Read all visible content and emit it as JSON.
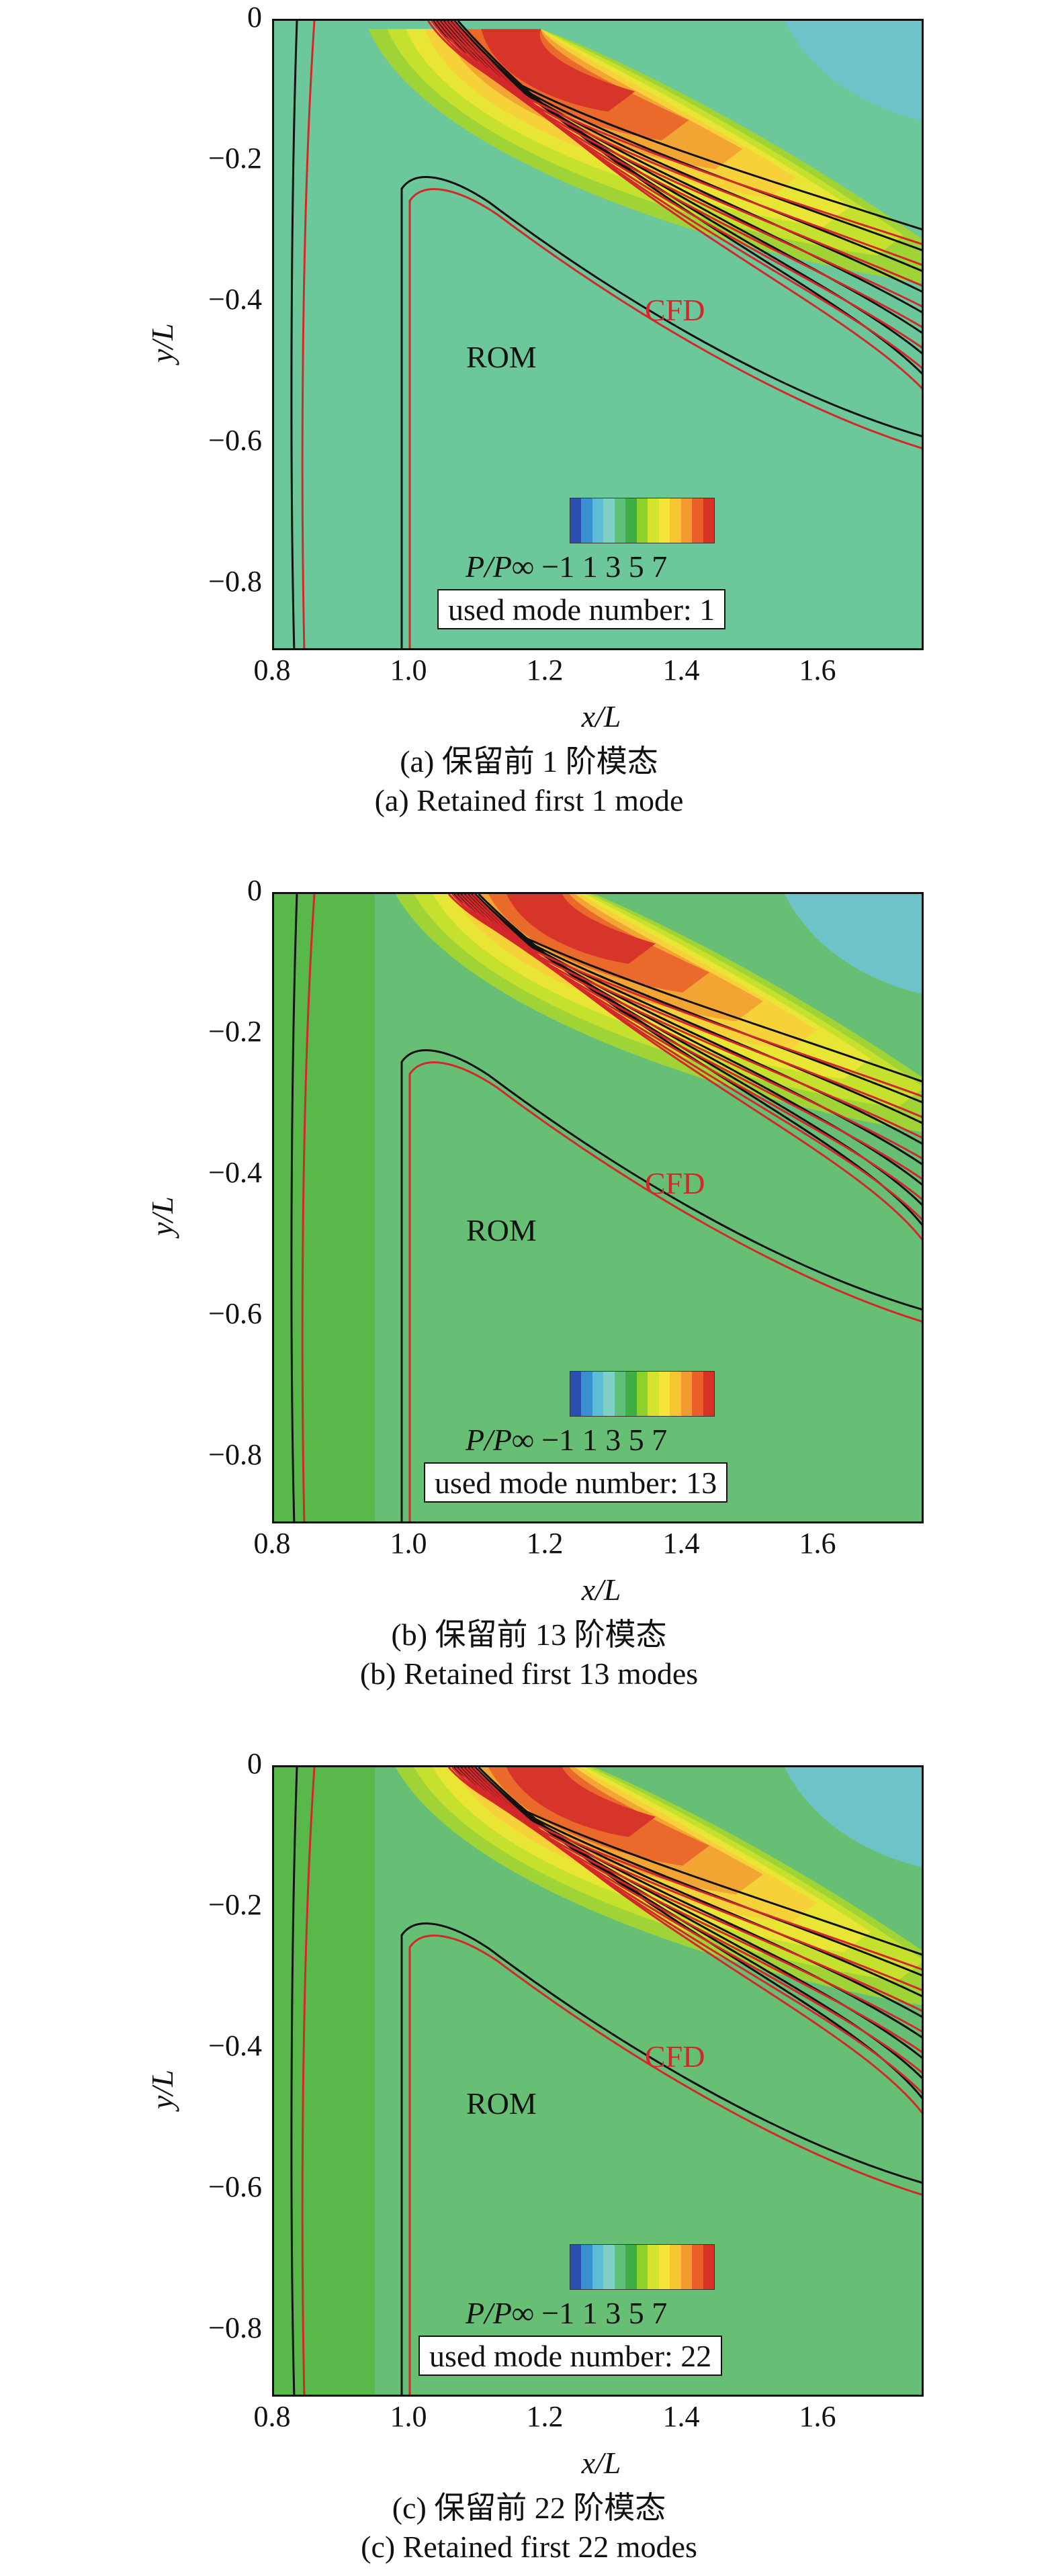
{
  "axes": {
    "xlabel": "x/L",
    "ylabel": "y/L",
    "xticks": [
      "0.8",
      "1.0",
      "1.2",
      "1.4",
      "1.6"
    ],
    "yticks": [
      "0",
      "−0.2",
      "−0.4",
      "−0.6",
      "−0.8"
    ]
  },
  "legend": {
    "colorbar_label": "P/P∞",
    "colorbar_ticks": "−1 1  3  5  7",
    "colors": [
      "#2b4fb0",
      "#3a8fd0",
      "#5fbcd8",
      "#7fd1c4",
      "#5fc07a",
      "#3fae45",
      "#8ed02c",
      "#d4e32b",
      "#f5e53a",
      "#f6c531",
      "#f29a30",
      "#ea5f2a",
      "#d83224"
    ]
  },
  "annotations": {
    "cfd": "CFD",
    "rom": "ROM"
  },
  "panels": [
    {
      "mode_box": "used mode number: 1",
      "caption_cn": "(a) 保留前 1 阶模态",
      "caption_en": "(a) Retained first 1 mode"
    },
    {
      "mode_box": "used mode number: 13",
      "caption_cn": "(b) 保留前 13 阶模态",
      "caption_en": "(b) Retained first 13 modes"
    },
    {
      "mode_box": "used mode number: 22",
      "caption_cn": "(c) 保留前 22 阶模态",
      "caption_en": "(c) Retained first 22 modes"
    }
  ],
  "chart_data": [
    {
      "type": "heatmap",
      "title": "",
      "xlabel": "x/L",
      "ylabel": "y/L",
      "xlim": [
        0.8,
        1.75
      ],
      "ylim": [
        -0.9,
        0
      ],
      "colorbar": {
        "label": "P/P∞",
        "range": [
          -1,
          7
        ],
        "ticks": [
          -1,
          1,
          3,
          5,
          7
        ]
      },
      "series": [
        {
          "name": "ROM",
          "modes": 1
        },
        {
          "name": "CFD"
        }
      ],
      "peak": {
        "x": 1.15,
        "y": -0.05,
        "value": 7
      }
    },
    {
      "type": "heatmap",
      "title": "",
      "xlabel": "x/L",
      "ylabel": "y/L",
      "xlim": [
        0.8,
        1.75
      ],
      "ylim": [
        -0.9,
        0
      ],
      "colorbar": {
        "label": "P/P∞",
        "range": [
          -1,
          7
        ],
        "ticks": [
          -1,
          1,
          3,
          5,
          7
        ]
      },
      "series": [
        {
          "name": "ROM",
          "modes": 13
        },
        {
          "name": "CFD"
        }
      ],
      "peak": {
        "x": 1.18,
        "y": -0.02,
        "value": 6
      }
    },
    {
      "type": "heatmap",
      "title": "",
      "xlabel": "x/L",
      "ylabel": "y/L",
      "xlim": [
        0.8,
        1.75
      ],
      "ylim": [
        -0.9,
        0
      ],
      "colorbar": {
        "label": "P/P∞",
        "range": [
          -1,
          7
        ],
        "ticks": [
          -1,
          1,
          3,
          5,
          7
        ]
      },
      "series": [
        {
          "name": "ROM",
          "modes": 22
        },
        {
          "name": "CFD"
        }
      ],
      "peak": {
        "x": 1.18,
        "y": -0.02,
        "value": 6
      }
    }
  ]
}
